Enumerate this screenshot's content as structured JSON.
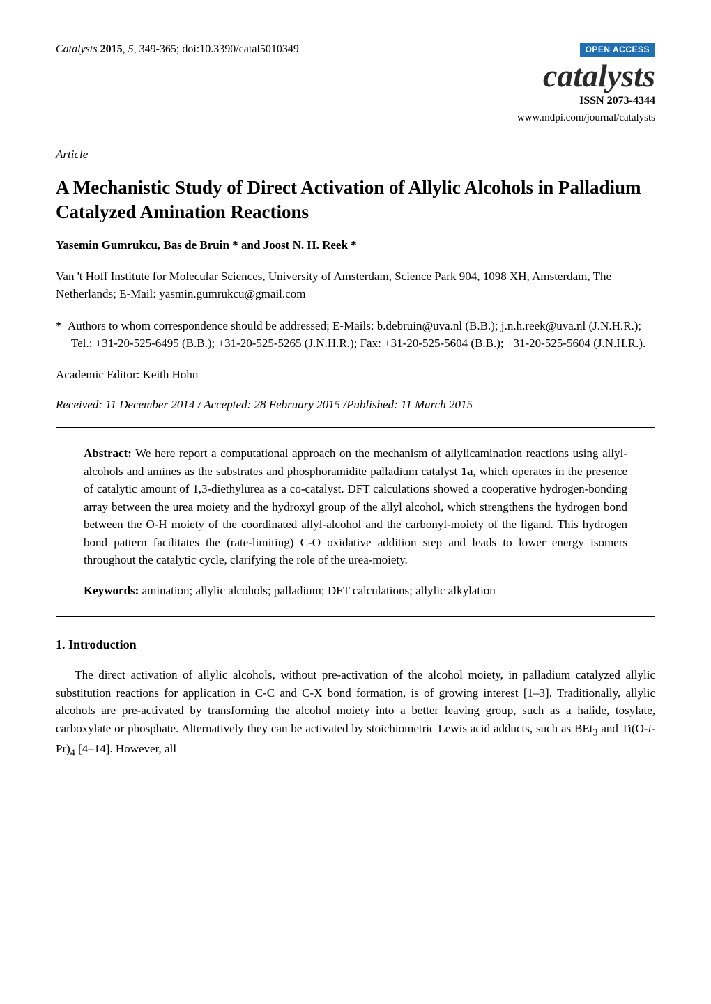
{
  "header": {
    "journal_ref_journal": "Catalysts",
    "journal_ref_year": "2015",
    "journal_ref_vol": "5",
    "journal_ref_pages_doi": ", 349-365; doi:10.3390/catal5010349",
    "open_access": "OPEN ACCESS",
    "journal_logo": "catalysts",
    "issn": "ISSN 2073-4344",
    "journal_url": "www.mdpi.com/journal/catalysts"
  },
  "article_label": "Article",
  "title": "A Mechanistic Study of Direct Activation of Allylic Alcohols in Palladium Catalyzed Amination Reactions",
  "authors": "Yasemin Gumrukcu, Bas de Bruin * and Joost N. H. Reek *",
  "affiliation": "Van 't Hoff Institute for Molecular Sciences, University of Amsterdam, Science Park 904, 1098 XH, Amsterdam, The Netherlands; E-Mail: yasmin.gumrukcu@gmail.com",
  "correspondence_star": "*",
  "correspondence": "Authors to whom correspondence should be addressed; E-Mails: b.debruin@uva.nl (B.B.); j.n.h.reek@uva.nl (J.N.H.R.); Tel.: +31-20-525-6495 (B.B.); +31-20-525-5265 (J.N.H.R.); Fax: +31-20-525-5604 (B.B.); +31-20-525-5604 (J.N.H.R.).",
  "editor": "Academic Editor: Keith Hohn",
  "dates": "Received: 11 December 2014 / Accepted: 28 February 2015 /Published: 11 March 2015",
  "abstract_label": "Abstract:",
  "abstract_text_1": " We here report a computational approach on the mechanism of allylicamination reactions using allyl-alcohols and amines as the substrates and phosphoramidite palladium catalyst ",
  "abstract_bold_1a": "1a",
  "abstract_text_2": ", which operates in the presence of catalytic amount of 1,3-diethylurea as a co-catalyst. DFT calculations showed a cooperative hydrogen-bonding array between the urea moiety and the hydroxyl group of the allyl alcohol, which strengthens the hydrogen bond between the O-H moiety of the coordinated allyl-alcohol and the carbonyl-moiety of the ligand. This hydrogen bond pattern facilitates the (rate-limiting) C-O oxidative addition step and leads to lower energy isomers throughout the catalytic cycle, clarifying the role of the urea-moiety.",
  "keywords_label": "Keywords:",
  "keywords_text": " amination; allylic alcohols; palladium; DFT calculations; allylic alkylation",
  "section_1": "1. Introduction",
  "body_1a": "The direct activation of allylic alcohols, without pre-activation of the alcohol moiety, in palladium catalyzed allylic substitution reactions for application in C-C and C-X bond formation, is of growing interest [1–3]. Traditionally, allylic alcohols are pre-activated by transforming the alcohol moiety into a better leaving group, such as a halide, tosylate, carboxylate or phosphate. Alternatively they can be activated by stoichiometric Lewis acid adducts, such as BEt",
  "body_1_sub3": "3",
  "body_1b": " and Ti(O-",
  "body_1_ipr": "i",
  "body_1c": "-Pr)",
  "body_1_sub4": "4",
  "body_1d": " [4–14]. However, all",
  "colors": {
    "badge_bg": "#1f6fb2",
    "badge_fg": "#ffffff",
    "text": "#000000",
    "bg": "#ffffff"
  },
  "typography": {
    "body_font": "Times New Roman",
    "body_size_pt": 12,
    "title_size_pt": 20,
    "logo_size_pt": 34
  }
}
